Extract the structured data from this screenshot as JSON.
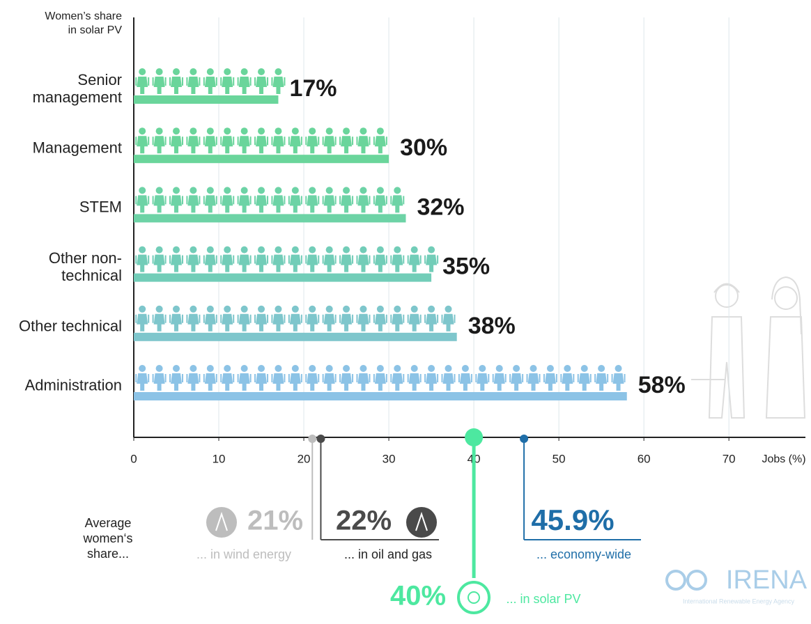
{
  "chart_data": {
    "type": "bar",
    "orientation": "horizontal",
    "y_label": [
      "Women’s share",
      "in solar PV"
    ],
    "x_label": "Jobs (%)",
    "categories": [
      "Senior management",
      "Management",
      "STEM",
      "Other non-technical",
      "Other technical",
      "Administration"
    ],
    "values": [
      17,
      30,
      32,
      35,
      38,
      58
    ],
    "value_labels": [
      "17%",
      "30%",
      "32%",
      "35%",
      "38%",
      "58%"
    ],
    "colors": [
      "#6ad59b",
      "#6ad59b",
      "#6dd3a6",
      "#72cdb8",
      "#7ec6cc",
      "#8cc3e6"
    ],
    "xlim": [
      0,
      79
    ],
    "xticks": [
      0,
      10,
      20,
      30,
      40,
      50,
      60,
      70
    ],
    "grid": true,
    "averages": {
      "label": "Average women‘s share...",
      "items": [
        {
          "name": "... in wind energy",
          "value": 21,
          "value_label": "21%",
          "color": "#bdbdbd"
        },
        {
          "name": "... in oil and gas",
          "value": 22,
          "value_label": "22%",
          "color": "#4a4a4a"
        },
        {
          "name": "... in solar PV",
          "value": 40,
          "value_label": "40%",
          "color": "#4de8a0"
        },
        {
          "name": "... economy-wide",
          "value": 45.9,
          "value_label": "45.9%",
          "color": "#1f6ea8"
        }
      ]
    },
    "source": "IRENA",
    "source_full": "International Renewable Energy Agency"
  }
}
